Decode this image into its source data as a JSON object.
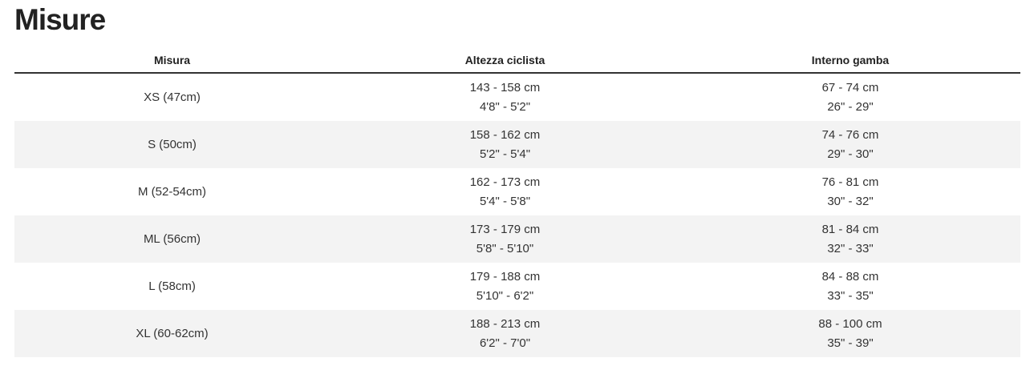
{
  "title": "Misure",
  "headers": [
    "Misura",
    "Altezza ciclista",
    "Interno gamba"
  ],
  "rows": [
    {
      "size": "XS (47cm)",
      "height_cm": "143 - 158 cm",
      "height_ft": "4'8\" - 5'2\"",
      "inseam_cm": "67 - 74 cm",
      "inseam_in": "26\" - 29\""
    },
    {
      "size": "S (50cm)",
      "height_cm": "158 - 162 cm",
      "height_ft": "5'2\" - 5'4\"",
      "inseam_cm": "74 - 76 cm",
      "inseam_in": "29\" - 30\""
    },
    {
      "size": "M (52-54cm)",
      "height_cm": "162 - 173 cm",
      "height_ft": "5'4\" - 5'8\"",
      "inseam_cm": "76 - 81 cm",
      "inseam_in": "30\" - 32\""
    },
    {
      "size": "ML (56cm)",
      "height_cm": "173 - 179 cm",
      "height_ft": "5'8\" - 5'10\"",
      "inseam_cm": "81 - 84 cm",
      "inseam_in": "32\" - 33\""
    },
    {
      "size": "L (58cm)",
      "height_cm": "179 - 188 cm",
      "height_ft": "5'10\" - 6'2\"",
      "inseam_cm": "84 - 88 cm",
      "inseam_in": "33\" - 35\""
    },
    {
      "size": "XL (60-62cm)",
      "height_cm": "188 - 213 cm",
      "height_ft": "6'2\" - 7'0\"",
      "inseam_cm": "88 - 100 cm",
      "inseam_in": "35\" - 39\""
    }
  ]
}
